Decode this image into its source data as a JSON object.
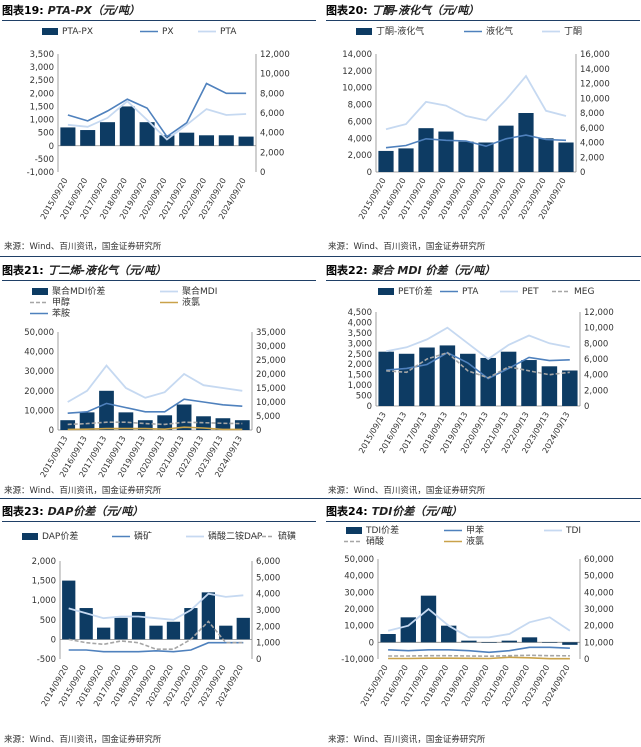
{
  "panels": [
    {
      "id": "c19",
      "fig_no": "图表19:",
      "title": "PTA-PX（元/吨）",
      "source": "来源：Wind、百川资讯，国金证券研究所",
      "legend": [
        "PTA-PX",
        "PX",
        "PTA"
      ],
      "left_ticks": [
        "3,500",
        "3,000",
        "2,500",
        "2,000",
        "1,500",
        "1,000",
        "500",
        "0",
        "-500",
        "-1,000"
      ],
      "right_ticks": [
        "12,000",
        "10,000",
        "8,000",
        "6,000",
        "4,000",
        "2,000",
        "0"
      ],
      "x_ticks": [
        "2015/09/20",
        "2016/09/20",
        "2017/09/20",
        "2018/09/20",
        "2019/09/20",
        "2020/09/20",
        "2021/09/20",
        "2022/09/20",
        "2023/09/20",
        "2024/09/20"
      ]
    },
    {
      "id": "c20",
      "fig_no": "图表20:",
      "title": "丁酮-液化气（元/吨）",
      "source": "来源：Wind、百川资讯，国金证券研究所",
      "legend": [
        "丁酮-液化气",
        "液化气",
        "丁酮"
      ],
      "left_ticks": [
        "14,000",
        "12,000",
        "10,000",
        "8,000",
        "6,000",
        "4,000",
        "2,000",
        "0"
      ],
      "right_ticks": [
        "16,000",
        "14,000",
        "12,000",
        "10,000",
        "8,000",
        "6,000",
        "4,000",
        "2,000",
        "0"
      ],
      "x_ticks": [
        "2015/09/20",
        "2016/09/20",
        "2017/09/20",
        "2018/09/20",
        "2019/09/20",
        "2020/09/20",
        "2021/09/20",
        "2022/09/20",
        "2023/09/20",
        "2024/09/20"
      ]
    },
    {
      "id": "c21",
      "fig_no": "图表21:",
      "title": "丁二烯-液化气（元/吨）",
      "source": "来源：Wind、百川资讯，国金证券研究所",
      "legend": [
        "聚合MDI价差",
        "聚合MDI",
        "甲醇",
        "液氯",
        "苯胺"
      ],
      "left_ticks": [
        "50,000",
        "40,000",
        "30,000",
        "20,000",
        "10,000",
        "0"
      ],
      "right_ticks": [
        "35,000",
        "30,000",
        "25,000",
        "20,000",
        "15,000",
        "10,000",
        "5,000",
        "0"
      ],
      "x_ticks": [
        "2015/09/13",
        "2016/09/13",
        "2017/09/13",
        "2018/09/13",
        "2019/09/13",
        "2020/09/13",
        "2021/09/13",
        "2022/09/13",
        "2023/09/13",
        "2024/09/13"
      ]
    },
    {
      "id": "c22",
      "fig_no": "图表22:",
      "title": "聚合 MDI 价差（元/吨）",
      "source": "来源：Wind、百川资讯，国金证券研究所",
      "legend": [
        "PET价差",
        "PTA",
        "PET",
        "MEG"
      ],
      "left_ticks": [
        "4,500",
        "4,000",
        "3,500",
        "3,000",
        "2,500",
        "2,000",
        "1,500",
        "1,000",
        "500",
        "0"
      ],
      "right_ticks": [
        "12,000",
        "10,000",
        "8,000",
        "6,000",
        "4,000",
        "2,000",
        "0"
      ],
      "x_ticks": [
        "2015/09/13",
        "2016/09/13",
        "2017/09/13",
        "2018/09/13",
        "2019/09/13",
        "2020/09/13",
        "2021/09/13",
        "2022/09/13",
        "2023/09/13",
        "2024/09/13"
      ]
    },
    {
      "id": "c23",
      "fig_no": "图表23:",
      "title": "DAP价差（元/吨）",
      "source": "来源：Wind、百川资讯，国金证券研究所",
      "legend": [
        "DAP价差",
        "磷矿",
        "磷酸二铵DAP",
        "硫磺"
      ],
      "left_ticks": [
        "2,000",
        "1,500",
        "1,000",
        "500",
        "0",
        "-500"
      ],
      "right_ticks": [
        "6,000",
        "5,000",
        "4,000",
        "3,000",
        "2,000",
        "1,000",
        "0"
      ],
      "x_ticks": [
        "2014/09/20",
        "2015/09/20",
        "2016/09/20",
        "2017/09/20",
        "2018/09/20",
        "2019/09/20",
        "2020/09/20",
        "2021/09/20",
        "2022/09/20",
        "2023/09/20",
        "2024/09/20"
      ]
    },
    {
      "id": "c24",
      "fig_no": "图表24:",
      "title": "TDI价差（元/吨）",
      "source": "来源：Wind、百川资讯，国金证券研究所",
      "legend": [
        "TDI价差",
        "甲苯",
        "TDI",
        "硝酸",
        "液氯"
      ],
      "left_ticks": [
        "50,000",
        "40,000",
        "30,000",
        "20,000",
        "10,000",
        "0",
        "-10,000"
      ],
      "right_ticks": [
        "60,000",
        "50,000",
        "40,000",
        "30,000",
        "20,000",
        "10,000",
        "0"
      ],
      "x_ticks": [
        "2015/09/20",
        "2016/09/20",
        "2017/09/20",
        "2018/09/20",
        "2019/09/20",
        "2020/09/20",
        "2021/09/20",
        "2022/09/20",
        "2023/09/20",
        "2024/09/20"
      ]
    }
  ],
  "colors": {
    "bar": "#0d3b63",
    "line_mid": "#4f81bd",
    "line_light": "#c6d9f1",
    "dash_gray": "#a6a6a6",
    "line_gold": "#c9a24a",
    "rule": "#1f3f66"
  },
  "chart_data": [
    {
      "type": "bar",
      "title": "PTA-PX（元/吨）",
      "x": [
        "2015/09/20",
        "2016/09/20",
        "2017/09/20",
        "2018/09/20",
        "2019/09/20",
        "2020/09/20",
        "2021/09/20",
        "2022/09/20",
        "2023/09/20",
        "2024/09/20"
      ],
      "ylim": [
        -1000,
        3500
      ],
      "y2lim": [
        0,
        12000
      ],
      "series": [
        {
          "name": "PTA-PX",
          "axis": "left",
          "kind": "bar",
          "values": [
            700,
            600,
            900,
            1500,
            900,
            400,
            500,
            400,
            400,
            350
          ]
        },
        {
          "name": "PX",
          "axis": "right",
          "kind": "line",
          "values": [
            5800,
            5200,
            6200,
            7400,
            6500,
            3600,
            5000,
            9000,
            8000,
            8000
          ]
        },
        {
          "name": "PTA",
          "axis": "right",
          "kind": "line",
          "values": [
            4800,
            4600,
            5500,
            7200,
            5300,
            3300,
            4800,
            6400,
            5800,
            5900
          ]
        }
      ]
    },
    {
      "type": "bar",
      "title": "丁酮-液化气（元/吨）",
      "x": [
        "2015/09/20",
        "2016/09/20",
        "2017/09/20",
        "2018/09/20",
        "2019/09/20",
        "2020/09/20",
        "2021/09/20",
        "2022/09/20",
        "2023/09/20",
        "2024/09/20"
      ],
      "ylim": [
        0,
        14000
      ],
      "y2lim": [
        0,
        16000
      ],
      "series": [
        {
          "name": "丁酮-液化气",
          "axis": "left",
          "kind": "bar",
          "values": [
            2500,
            2800,
            5200,
            4800,
            3600,
            3500,
            5500,
            7000,
            4000,
            3500
          ]
        },
        {
          "name": "液化气",
          "axis": "right",
          "kind": "line",
          "values": [
            3300,
            3600,
            4500,
            4300,
            4200,
            3500,
            4500,
            5000,
            4400,
            4300
          ]
        },
        {
          "name": "丁酮",
          "axis": "right",
          "kind": "line",
          "values": [
            5800,
            6500,
            9500,
            9000,
            7600,
            7000,
            9800,
            13000,
            8300,
            7600
          ]
        }
      ]
    },
    {
      "type": "bar",
      "title": "丁二烯-液化气（元/吨）",
      "x": [
        "2015/09/13",
        "2016/09/13",
        "2017/09/13",
        "2018/09/13",
        "2019/09/13",
        "2020/09/13",
        "2021/09/13",
        "2022/09/13",
        "2023/09/13",
        "2024/09/13"
      ],
      "ylim": [
        0,
        50000
      ],
      "y2lim": [
        0,
        35000
      ],
      "series": [
        {
          "name": "聚合MDI价差",
          "axis": "left",
          "kind": "bar",
          "values": [
            5000,
            9000,
            20000,
            9000,
            5000,
            7500,
            13000,
            7000,
            6000,
            5000
          ]
        },
        {
          "name": "聚合MDI",
          "axis": "right",
          "kind": "line",
          "values": [
            10000,
            14000,
            23000,
            15000,
            11500,
            13500,
            20000,
            16000,
            15000,
            14000
          ]
        },
        {
          "name": "甲醇",
          "axis": "right",
          "kind": "line",
          "values": [
            2000,
            2300,
            2800,
            2800,
            2300,
            2000,
            2800,
            2600,
            2400,
            2300
          ]
        },
        {
          "name": "液氯",
          "axis": "right",
          "kind": "line",
          "values": [
            200,
            300,
            500,
            500,
            500,
            300,
            1000,
            700,
            200,
            200
          ]
        },
        {
          "name": "苯胺",
          "axis": "right",
          "kind": "line",
          "values": [
            6000,
            6500,
            9500,
            8000,
            6500,
            6500,
            11000,
            10000,
            9000,
            8500
          ]
        }
      ]
    },
    {
      "type": "bar",
      "title": "聚合 MDI 价差（元/吨）",
      "x": [
        "2015/09/13",
        "2016/09/13",
        "2017/09/13",
        "2018/09/13",
        "2019/09/13",
        "2020/09/13",
        "2021/09/13",
        "2022/09/13",
        "2023/09/13",
        "2024/09/13"
      ],
      "ylim": [
        0,
        4500
      ],
      "y2lim": [
        0,
        12000
      ],
      "series": [
        {
          "name": "PET价差",
          "axis": "left",
          "kind": "bar",
          "values": [
            2600,
            2500,
            2800,
            2900,
            2500,
            2300,
            2600,
            2200,
            1900,
            1700
          ]
        },
        {
          "name": "PTA",
          "axis": "right",
          "kind": "line",
          "values": [
            4600,
            4800,
            5300,
            6800,
            5500,
            3500,
            4800,
            6200,
            5800,
            5900
          ]
        },
        {
          "name": "PET",
          "axis": "right",
          "kind": "line",
          "values": [
            7000,
            7500,
            8500,
            10000,
            8000,
            6000,
            7800,
            9000,
            8000,
            7500
          ]
        },
        {
          "name": "MEG",
          "axis": "right",
          "kind": "line",
          "values": [
            4500,
            4300,
            6000,
            6800,
            4500,
            3600,
            5000,
            4500,
            4000,
            4300
          ]
        }
      ]
    },
    {
      "type": "bar",
      "title": "DAP价差（元/吨）",
      "x": [
        "2014/09/20",
        "2015/09/20",
        "2016/09/20",
        "2017/09/20",
        "2018/09/20",
        "2019/09/20",
        "2020/09/20",
        "2021/09/20",
        "2022/09/20",
        "2023/09/20",
        "2024/09/20"
      ],
      "ylim": [
        -500,
        2000
      ],
      "y2lim": [
        0,
        6000
      ],
      "series": [
        {
          "name": "DAP价差",
          "axis": "left",
          "kind": "bar",
          "values": [
            1500,
            800,
            300,
            550,
            700,
            350,
            450,
            800,
            1200,
            350,
            550
          ]
        },
        {
          "name": "磷矿",
          "axis": "right",
          "kind": "line",
          "values": [
            550,
            550,
            450,
            450,
            450,
            500,
            450,
            550,
            1000,
            1000,
            1000
          ]
        },
        {
          "name": "磷酸二铵DAP",
          "axis": "right",
          "kind": "line",
          "values": [
            3100,
            2800,
            2500,
            2600,
            2600,
            2500,
            2400,
            3000,
            4000,
            3800,
            3900
          ]
        },
        {
          "name": "硫磺",
          "axis": "right",
          "kind": "line",
          "values": [
            1200,
            1000,
            900,
            1100,
            1000,
            600,
            600,
            1200,
            2300,
            1000,
            1000
          ]
        }
      ]
    },
    {
      "type": "bar",
      "title": "TDI价差（元/吨）",
      "x": [
        "2015/09/20",
        "2016/09/20",
        "2017/09/20",
        "2018/09/20",
        "2019/09/20",
        "2020/09/20",
        "2021/09/20",
        "2022/09/20",
        "2023/09/20",
        "2024/09/20"
      ],
      "ylim": [
        -10000,
        50000
      ],
      "y2lim": [
        0,
        60000
      ],
      "series": [
        {
          "name": "TDI价差",
          "axis": "left",
          "kind": "bar",
          "values": [
            5000,
            15000,
            28000,
            10000,
            1000,
            0,
            1000,
            3000,
            0,
            -1500
          ]
        },
        {
          "name": "甲苯",
          "axis": "right",
          "kind": "line",
          "values": [
            5500,
            5000,
            5500,
            5500,
            5000,
            4000,
            5000,
            7000,
            7000,
            6500
          ]
        },
        {
          "name": "TDI",
          "axis": "right",
          "kind": "line",
          "values": [
            17000,
            20000,
            30000,
            20000,
            13000,
            13000,
            15000,
            22000,
            25000,
            17000
          ]
        },
        {
          "name": "硝酸",
          "axis": "right",
          "kind": "line",
          "values": [
            1800,
            1800,
            2000,
            2000,
            1800,
            1700,
            2000,
            2200,
            2000,
            1900
          ]
        },
        {
          "name": "液氯",
          "axis": "right",
          "kind": "line",
          "values": [
            300,
            300,
            500,
            500,
            400,
            300,
            1000,
            700,
            200,
            200
          ]
        }
      ]
    }
  ]
}
